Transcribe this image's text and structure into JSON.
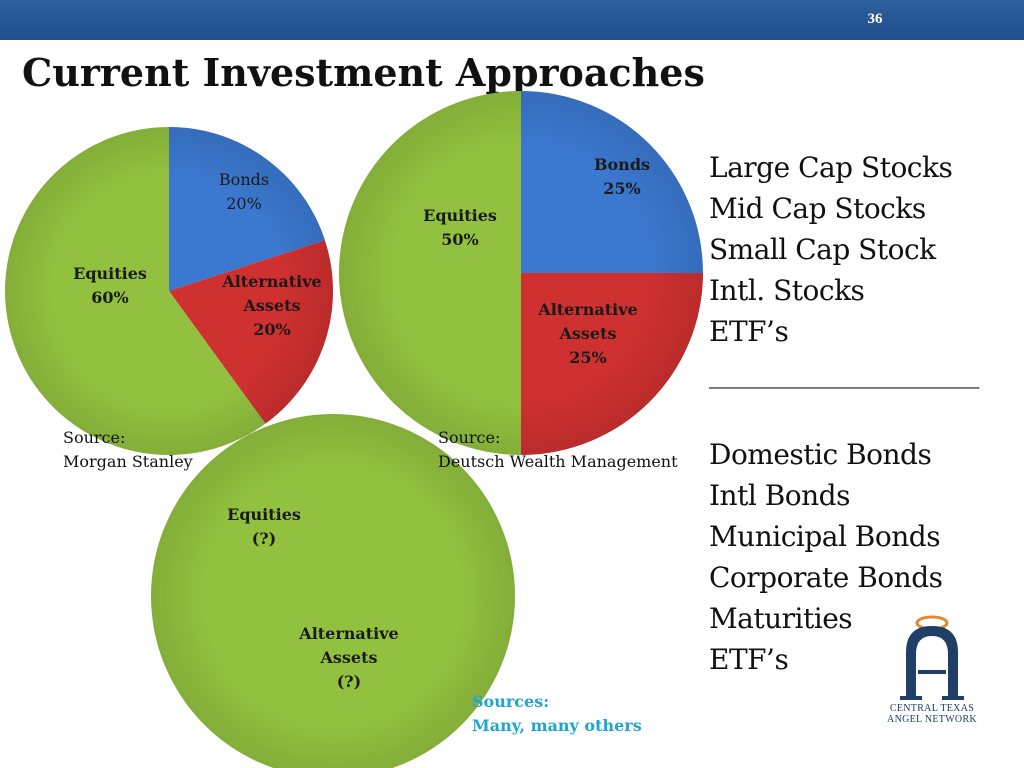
{
  "slide": {
    "number": "36",
    "title": "Current Investment Approaches"
  },
  "colors": {
    "header_bar": "#2a5a98",
    "equities": "#92c13f",
    "bonds": "#3b78cf",
    "alternative": "#cf3030",
    "sources_note": "#1fa5d0",
    "logo_navy": "#1f3f66",
    "logo_orange": "#e08a2e"
  },
  "chart_data": [
    {
      "type": "pie",
      "slices": [
        {
          "label": "Bonds",
          "value": 20,
          "value_label": "20%",
          "color": "#3b78cf"
        },
        {
          "label": "Alternative Assets",
          "value": 20,
          "value_label": "20%",
          "color": "#cf3030"
        },
        {
          "label": "Equities",
          "value": 60,
          "value_label": "60%",
          "color": "#92c13f"
        }
      ],
      "source_label": "Source:",
      "source_name": "Morgan Stanley"
    },
    {
      "type": "pie",
      "slices": [
        {
          "label": "Bonds",
          "value": 25,
          "value_label": "25%",
          "color": "#3b78cf"
        },
        {
          "label": "Alternative Assets",
          "value": 25,
          "value_label": "25%",
          "color": "#cf3030"
        },
        {
          "label": "Equities",
          "value": 50,
          "value_label": "50%",
          "color": "#92c13f"
        }
      ],
      "source_label": "Source:",
      "source_name": "Deutsch Wealth Management"
    },
    {
      "type": "pie",
      "slices": [
        {
          "label": "Equities",
          "value_label": "(?)",
          "color": "#92c13f"
        },
        {
          "label": "Alternative Assets",
          "value_label": "(?)",
          "color": "#92c13f"
        }
      ],
      "source_label": "Sources:",
      "source_name": "Many, many others"
    }
  ],
  "text_labels": {
    "equities": "Equities",
    "bonds": "Bonds",
    "alternative_line1": "Alternative",
    "alternative_line2": "Assets"
  },
  "asset_list": {
    "stocks": [
      "Large Cap Stocks",
      "Mid Cap Stocks",
      "Small Cap Stock",
      "Intl. Stocks",
      "ETF’s"
    ],
    "divider": "____________________",
    "bonds": [
      "Domestic Bonds",
      "Intl Bonds",
      "Municipal Bonds",
      "Corporate Bonds",
      "Maturities",
      "ETF’s"
    ]
  },
  "logo": {
    "line1": "CENTRAL TEXAS",
    "line2": "ANGEL NETWORK"
  }
}
